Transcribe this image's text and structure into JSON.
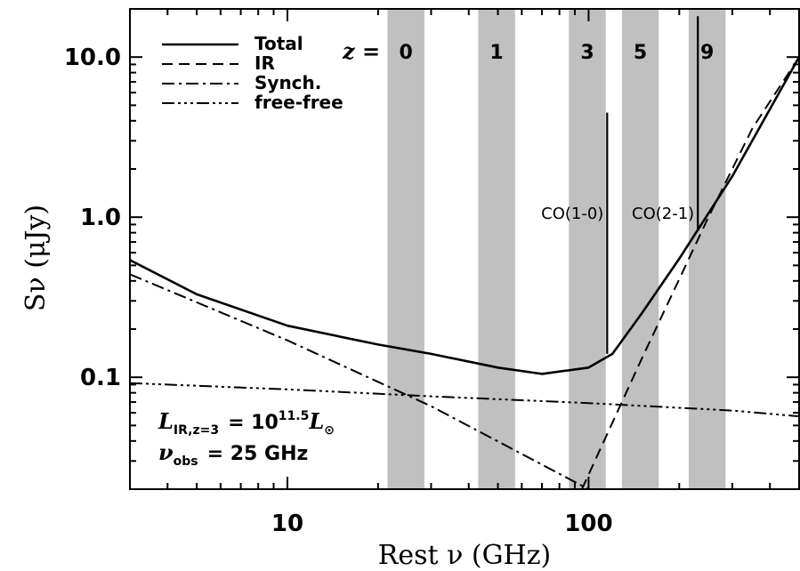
{
  "chart_data": {
    "type": "line",
    "xlabel": "Rest ν (GHz)",
    "ylabel": "Sν (μJy)",
    "x_scale": "log",
    "y_scale": "log",
    "xlim": [
      3,
      500
    ],
    "ylim": [
      0.02,
      20
    ],
    "x_ticks": [
      10,
      100
    ],
    "x_tick_labels": [
      "10",
      "100"
    ],
    "y_ticks": [
      0.1,
      1.0,
      10.0
    ],
    "y_tick_labels": [
      "0.1",
      "1.0",
      "10.0"
    ],
    "legend_position": "top-left",
    "series": [
      {
        "name": "Total",
        "style": "solid",
        "x": [
          3,
          5,
          10,
          20,
          30,
          50,
          70,
          100,
          120,
          150,
          200,
          300,
          500
        ],
        "y": [
          0.54,
          0.33,
          0.21,
          0.16,
          0.14,
          0.115,
          0.105,
          0.115,
          0.14,
          0.25,
          0.55,
          1.8,
          10.0
        ]
      },
      {
        "name": "IR",
        "style": "dashed",
        "x": [
          95,
          150,
          250,
          350,
          500
        ],
        "y": [
          0.02,
          0.13,
          1.0,
          3.6,
          10.0
        ]
      },
      {
        "name": "Synch.",
        "style": "dash-dot",
        "x": [
          3,
          10,
          30,
          100
        ],
        "y": [
          0.44,
          0.17,
          0.066,
          0.02
        ]
      },
      {
        "name": "free-free",
        "style": "dash-dot-dot-dot",
        "x": [
          3,
          10,
          30,
          100,
          300,
          500
        ],
        "y": [
          0.092,
          0.084,
          0.076,
          0.069,
          0.062,
          0.057
        ]
      }
    ],
    "bands": [
      {
        "label": "0",
        "x0": 21.5,
        "x1": 28.5
      },
      {
        "label": "1",
        "x0": 43,
        "x1": 57
      },
      {
        "label": "3",
        "x0": 86,
        "x1": 114
      },
      {
        "label": "5",
        "x0": 129,
        "x1": 171
      },
      {
        "label": "9",
        "x0": 215,
        "x1": 285
      }
    ],
    "z_prefix": "z =",
    "lines": [
      {
        "label": "CO(1-0)",
        "x": 115.27,
        "y_bottom": 0.14,
        "y_top": 4.5
      },
      {
        "label": "CO(2-1)",
        "x": 230.54,
        "y_bottom": 0.82,
        "y_top": 18
      }
    ],
    "annotations": {
      "luminosity": {
        "sym": "L",
        "sub": "IR,z=3",
        "eq": "= 10",
        "exp": "11.5",
        "unit": "L",
        "unit_sub": "⊙"
      },
      "frequency": {
        "sym": "ν",
        "sub": "obs",
        "text": "= 25 GHz"
      }
    }
  }
}
